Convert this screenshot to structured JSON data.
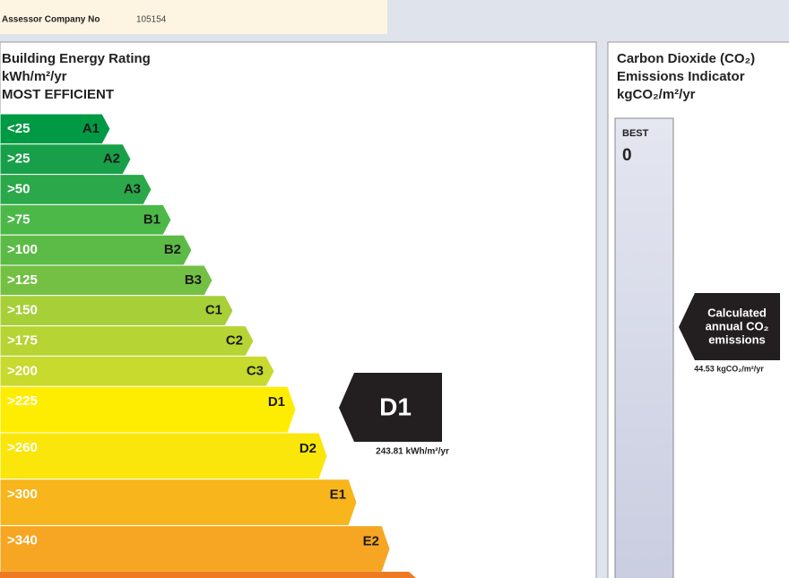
{
  "header": {
    "rows": [
      {
        "label": "Assessor Company No",
        "value": "105154"
      }
    ]
  },
  "ber": {
    "title": "Building Energy Rating",
    "unit": "kWh/m²/yr",
    "scale_top": "MOST EFFICIENT",
    "bands": [
      {
        "range": "<25",
        "grade": "A1",
        "color": "#009a44"
      },
      {
        "range": ">25",
        "grade": "A2",
        "color": "#17a049"
      },
      {
        "range": ">50",
        "grade": "A3",
        "color": "#2aa84a"
      },
      {
        "range": ">75",
        "grade": "B1",
        "color": "#4cb848"
      },
      {
        "range": ">100",
        "grade": "B2",
        "color": "#5cbb46"
      },
      {
        "range": ">125",
        "grade": "B3",
        "color": "#74c044"
      },
      {
        "range": ">150",
        "grade": "C1",
        "color": "#a7cf38"
      },
      {
        "range": ">175",
        "grade": "C2",
        "color": "#b6d433"
      },
      {
        "range": ">200",
        "grade": "C3",
        "color": "#c7da2d"
      },
      {
        "range": ">225",
        "grade": "D1",
        "color": "#ffed00"
      },
      {
        "range": ">260",
        "grade": "D2",
        "color": "#fae60a"
      },
      {
        "range": ">300",
        "grade": "E1",
        "color": "#f8b51c"
      },
      {
        "range": ">340",
        "grade": "E2",
        "color": "#f6a623"
      }
    ],
    "rating": "D1",
    "rating_value": "243.81 kWh/m²/yr"
  },
  "co2": {
    "title_lines": [
      "Carbon Dioxide (CO₂)",
      "Emissions Indicator",
      "kgCO₂/m²/yr"
    ],
    "best_label": "BEST",
    "best_value": "0",
    "indicator_lines": [
      "Calculated",
      "annual CO₂",
      "emissions"
    ],
    "value": "44.53 kgCO₂/m²/yr"
  }
}
